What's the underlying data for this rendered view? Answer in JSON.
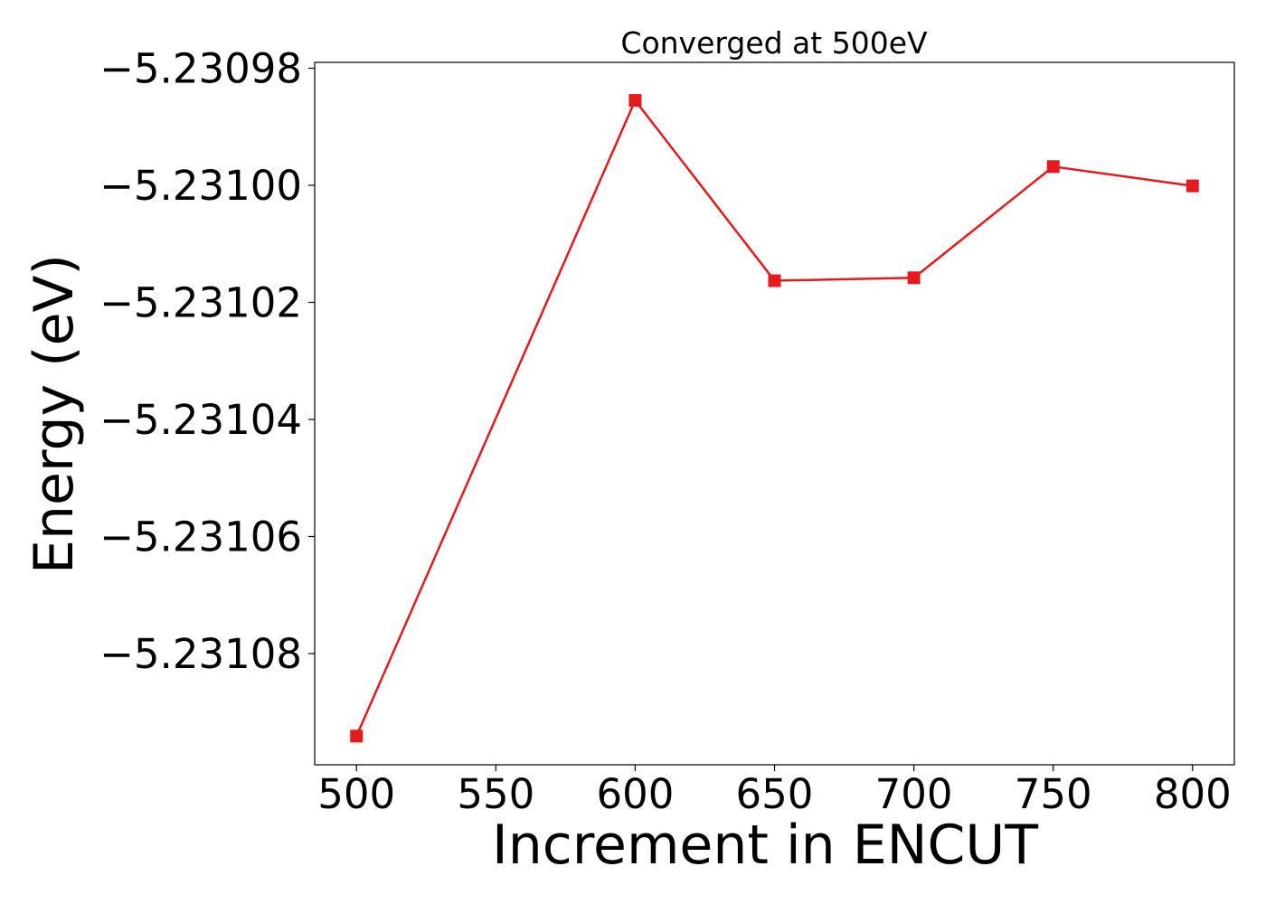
{
  "chart_data": {
    "type": "line",
    "title": "Converged at 500eV",
    "xlabel": "Increment in ENCUT",
    "ylabel": "Energy (eV)",
    "xlim": [
      485,
      815
    ],
    "ylim": [
      -5.231099,
      -5.230979
    ],
    "x_ticks": [
      500,
      550,
      600,
      650,
      700,
      750,
      800
    ],
    "x_tick_labels": [
      "500",
      "550",
      "600",
      "650",
      "700",
      "750",
      "800"
    ],
    "y_ticks": [
      -5.23098,
      -5.231,
      -5.23102,
      -5.23104,
      -5.23106,
      -5.23108
    ],
    "y_tick_labels": [
      "−5.23098",
      "−5.23100",
      "−5.23102",
      "−5.23104",
      "−5.23106",
      "−5.23108"
    ],
    "grid": false,
    "series": [
      {
        "color": "#e41a1c",
        "marker": "square",
        "x": [
          500,
          600,
          650,
          700,
          750,
          800
        ],
        "y": [
          -5.2310941,
          -5.2309855,
          -5.2310163,
          -5.2310158,
          -5.2309968,
          -5.2310001
        ]
      }
    ]
  }
}
